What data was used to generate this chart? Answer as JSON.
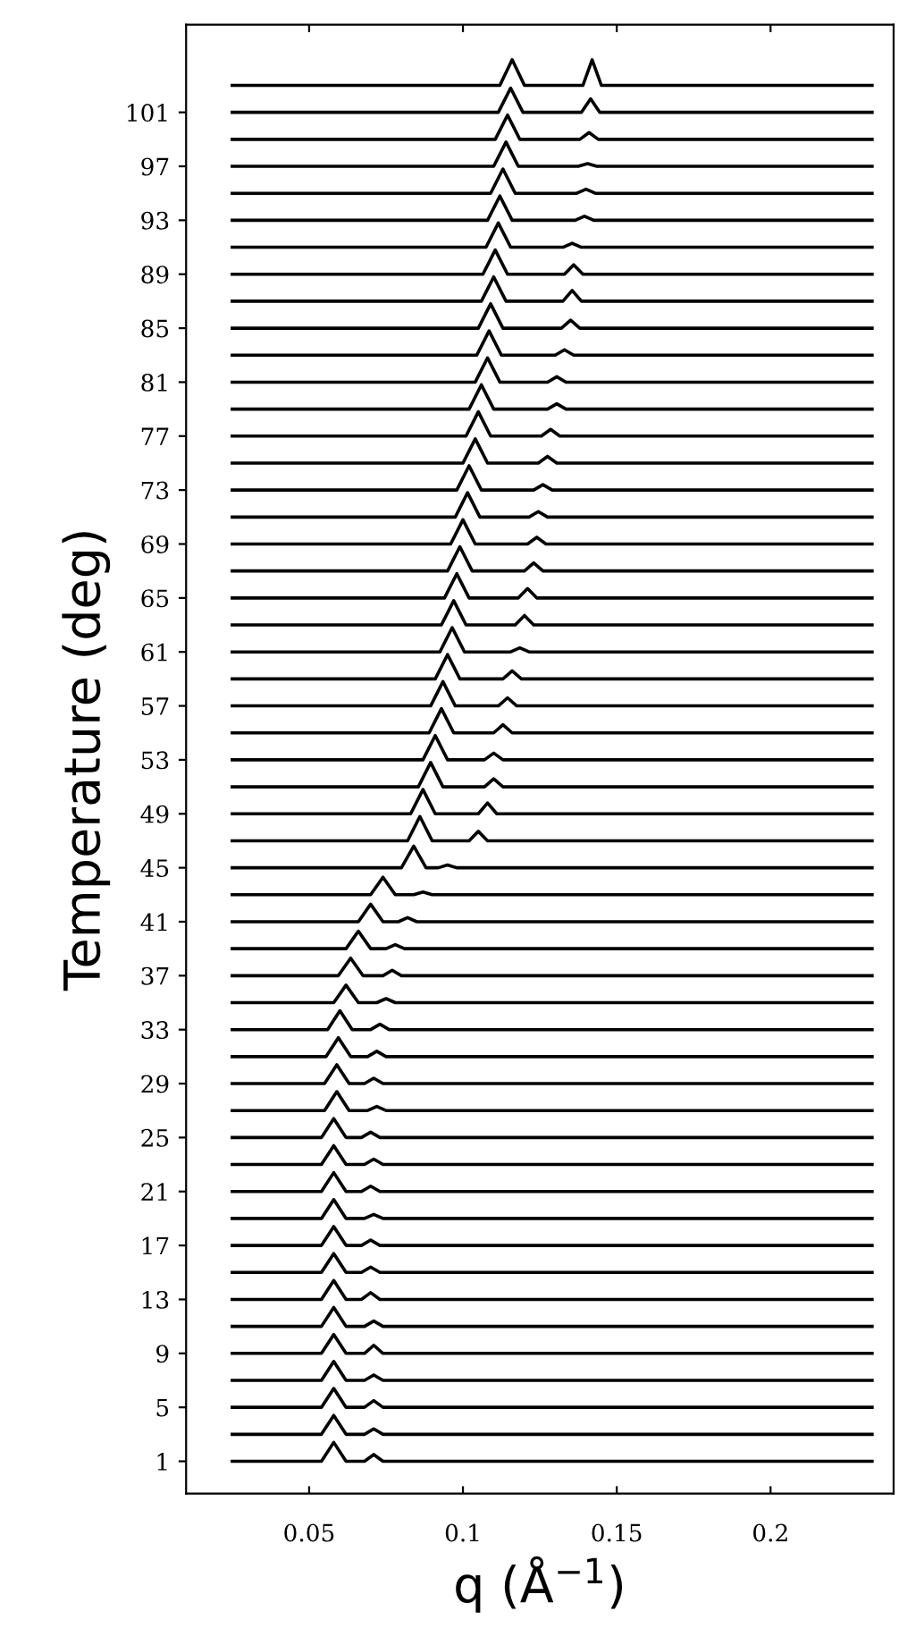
{
  "chart_data": {
    "type": "line",
    "xlabel": "q (Å$^{−1}$)",
    "ylabel": "Temperature (deg)",
    "xlim": [
      0.01,
      0.24
    ],
    "xticks": [
      0.05,
      0.1,
      0.15,
      0.2
    ],
    "ylim": [
      -1.4,
      107.5
    ],
    "yticks": [
      1,
      5,
      9,
      13,
      17,
      21,
      25,
      29,
      33,
      37,
      41,
      45,
      49,
      53,
      57,
      61,
      65,
      69,
      73,
      77,
      81,
      85,
      89,
      93,
      97,
      101
    ],
    "grid": false,
    "marker": "none",
    "line_style": "solid",
    "series": [
      {
        "color": "#000000",
        "x": [
          0.025,
          0.054,
          0.058,
          0.062,
          0.068,
          0.071,
          0.074,
          0.233
        ],
        "values": [
          1,
          1,
          2.4,
          1,
          1,
          1.5,
          1,
          1
        ]
      },
      {
        "color": "#000000",
        "x": [
          0.025,
          0.054,
          0.058,
          0.062,
          0.068,
          0.071,
          0.074,
          0.233
        ],
        "values": [
          3,
          3,
          4.4,
          3,
          3,
          3.4,
          3,
          3
        ]
      },
      {
        "color": "#000000",
        "x": [
          0.025,
          0.054,
          0.058,
          0.062,
          0.068,
          0.071,
          0.074,
          0.233
        ],
        "values": [
          5,
          5,
          6.4,
          5,
          5,
          5.5,
          5,
          5
        ]
      },
      {
        "color": "#000000",
        "x": [
          0.025,
          0.054,
          0.058,
          0.062,
          0.068,
          0.071,
          0.074,
          0.233
        ],
        "values": [
          7,
          7,
          8.4,
          7,
          7,
          7.4,
          7,
          7
        ]
      },
      {
        "color": "#000000",
        "x": [
          0.025,
          0.054,
          0.058,
          0.062,
          0.068,
          0.071,
          0.074,
          0.233
        ],
        "values": [
          9,
          9,
          10.4,
          9,
          9,
          9.6,
          9,
          9
        ]
      },
      {
        "color": "#000000",
        "x": [
          0.025,
          0.054,
          0.058,
          0.062,
          0.068,
          0.071,
          0.074,
          0.233
        ],
        "values": [
          11,
          11,
          12.4,
          11,
          11,
          11.4,
          11,
          11
        ]
      },
      {
        "color": "#000000",
        "x": [
          0.025,
          0.054,
          0.058,
          0.062,
          0.067,
          0.07,
          0.073,
          0.233
        ],
        "values": [
          13,
          13,
          14.4,
          13,
          13,
          13.5,
          13,
          13
        ]
      },
      {
        "color": "#000000",
        "x": [
          0.025,
          0.054,
          0.058,
          0.062,
          0.067,
          0.07,
          0.073,
          0.233
        ],
        "values": [
          15,
          15,
          16.4,
          15,
          15,
          15.4,
          15,
          15
        ]
      },
      {
        "color": "#000000",
        "x": [
          0.025,
          0.054,
          0.058,
          0.062,
          0.067,
          0.07,
          0.073,
          0.233
        ],
        "values": [
          17,
          17,
          18.4,
          17,
          17,
          17.4,
          17,
          17
        ]
      },
      {
        "color": "#000000",
        "x": [
          0.025,
          0.054,
          0.058,
          0.062,
          0.068,
          0.071,
          0.074,
          0.233
        ],
        "values": [
          19,
          19,
          20.4,
          19,
          19,
          19.3,
          19,
          19
        ]
      },
      {
        "color": "#000000",
        "x": [
          0.025,
          0.054,
          0.058,
          0.062,
          0.067,
          0.07,
          0.073,
          0.233
        ],
        "values": [
          21,
          21,
          22.4,
          21,
          21,
          21.4,
          21,
          21
        ]
      },
      {
        "color": "#000000",
        "x": [
          0.025,
          0.054,
          0.058,
          0.062,
          0.068,
          0.071,
          0.074,
          0.233
        ],
        "values": [
          23,
          23,
          24.4,
          23,
          23,
          23.4,
          23,
          23
        ]
      },
      {
        "color": "#000000",
        "x": [
          0.025,
          0.054,
          0.058,
          0.062,
          0.067,
          0.07,
          0.073,
          0.233
        ],
        "values": [
          25,
          25,
          26.4,
          25,
          25,
          25.4,
          25,
          25
        ]
      },
      {
        "color": "#000000",
        "x": [
          0.025,
          0.055,
          0.059,
          0.063,
          0.069,
          0.072,
          0.075,
          0.233
        ],
        "values": [
          27,
          27,
          28.4,
          27,
          27,
          27.3,
          27,
          27
        ]
      },
      {
        "color": "#000000",
        "x": [
          0.025,
          0.055,
          0.059,
          0.063,
          0.068,
          0.071,
          0.074,
          0.233
        ],
        "values": [
          29,
          29,
          30.4,
          29,
          29,
          29.4,
          29,
          29
        ]
      },
      {
        "color": "#000000",
        "x": [
          0.025,
          0.0555,
          0.0595,
          0.0635,
          0.069,
          0.072,
          0.075,
          0.233
        ],
        "values": [
          31,
          31,
          32.4,
          31,
          31,
          31.4,
          31,
          31
        ]
      },
      {
        "color": "#000000",
        "x": [
          0.025,
          0.056,
          0.06,
          0.064,
          0.07,
          0.073,
          0.076,
          0.233
        ],
        "values": [
          33,
          33,
          34.4,
          33,
          33,
          33.4,
          33,
          33
        ]
      },
      {
        "color": "#000000",
        "x": [
          0.025,
          0.058,
          0.062,
          0.066,
          0.072,
          0.075,
          0.078,
          0.233
        ],
        "values": [
          35,
          35,
          36.3,
          35,
          35,
          35.3,
          35,
          35
        ]
      },
      {
        "color": "#000000",
        "x": [
          0.025,
          0.0595,
          0.0635,
          0.0675,
          0.074,
          0.077,
          0.08,
          0.233
        ],
        "values": [
          37,
          37,
          38.3,
          37,
          37,
          37.4,
          37,
          37
        ]
      },
      {
        "color": "#000000",
        "x": [
          0.025,
          0.062,
          0.066,
          0.07,
          0.075,
          0.078,
          0.081,
          0.233
        ],
        "values": [
          39,
          39,
          40.3,
          39,
          39,
          39.3,
          39,
          39
        ]
      },
      {
        "color": "#000000",
        "x": [
          0.025,
          0.066,
          0.07,
          0.074,
          0.079,
          0.082,
          0.085,
          0.233
        ],
        "values": [
          41,
          41,
          42.3,
          41,
          41,
          41.3,
          41,
          41
        ]
      },
      {
        "color": "#000000",
        "x": [
          0.025,
          0.07,
          0.074,
          0.078,
          0.084,
          0.087,
          0.09,
          0.233
        ],
        "values": [
          43,
          43,
          44.3,
          43,
          43,
          43.2,
          43,
          43
        ]
      },
      {
        "color": "#000000",
        "x": [
          0.025,
          0.08,
          0.084,
          0.088,
          0.092,
          0.095,
          0.098,
          0.233
        ],
        "values": [
          45,
          45,
          46.6,
          45,
          45,
          45.2,
          45,
          45
        ]
      },
      {
        "color": "#000000",
        "x": [
          0.025,
          0.082,
          0.086,
          0.09,
          0.102,
          0.105,
          0.108,
          0.233
        ],
        "values": [
          47,
          47,
          48.8,
          47,
          47,
          47.7,
          47,
          47
        ]
      },
      {
        "color": "#000000",
        "x": [
          0.025,
          0.083,
          0.087,
          0.091,
          0.105,
          0.108,
          0.111,
          0.233
        ],
        "values": [
          49,
          49,
          50.8,
          49,
          49,
          49.8,
          49,
          49
        ]
      },
      {
        "color": "#000000",
        "x": [
          0.025,
          0.0855,
          0.0895,
          0.0935,
          0.107,
          0.11,
          0.113,
          0.233
        ],
        "values": [
          51,
          51,
          52.8,
          51,
          51,
          51.6,
          51,
          51
        ]
      },
      {
        "color": "#000000",
        "x": [
          0.025,
          0.087,
          0.091,
          0.095,
          0.107,
          0.11,
          0.113,
          0.233
        ],
        "values": [
          53,
          53,
          54.8,
          53,
          53,
          53.5,
          53,
          53
        ]
      },
      {
        "color": "#000000",
        "x": [
          0.025,
          0.089,
          0.093,
          0.097,
          0.11,
          0.113,
          0.116,
          0.233
        ],
        "values": [
          55,
          55,
          56.8,
          55,
          55,
          55.6,
          55,
          55
        ]
      },
      {
        "color": "#000000",
        "x": [
          0.025,
          0.0895,
          0.0935,
          0.0975,
          0.1115,
          0.1145,
          0.1175,
          0.233
        ],
        "values": [
          57,
          57,
          58.8,
          57,
          57,
          57.6,
          57,
          57
        ]
      },
      {
        "color": "#000000",
        "x": [
          0.025,
          0.091,
          0.095,
          0.099,
          0.113,
          0.116,
          0.119,
          0.233
        ],
        "values": [
          59,
          59,
          60.8,
          59,
          59,
          59.6,
          59,
          59
        ]
      },
      {
        "color": "#000000",
        "x": [
          0.025,
          0.0925,
          0.0965,
          0.1005,
          0.1155,
          0.1185,
          0.1215,
          0.233
        ],
        "values": [
          61,
          61,
          62.8,
          61,
          61,
          61.3,
          61,
          61
        ]
      },
      {
        "color": "#000000",
        "x": [
          0.025,
          0.093,
          0.097,
          0.101,
          0.117,
          0.12,
          0.123,
          0.233
        ],
        "values": [
          63,
          63,
          64.8,
          63,
          63,
          63.7,
          63,
          63
        ]
      },
      {
        "color": "#000000",
        "x": [
          0.025,
          0.094,
          0.098,
          0.102,
          0.118,
          0.121,
          0.124,
          0.233
        ],
        "values": [
          65,
          65,
          66.8,
          65,
          65,
          65.7,
          65,
          65
        ]
      },
      {
        "color": "#000000",
        "x": [
          0.025,
          0.095,
          0.099,
          0.103,
          0.12,
          0.123,
          0.126,
          0.233
        ],
        "values": [
          67,
          67,
          68.8,
          67,
          67,
          67.6,
          67,
          67
        ]
      },
      {
        "color": "#000000",
        "x": [
          0.025,
          0.096,
          0.1,
          0.104,
          0.121,
          0.124,
          0.127,
          0.233
        ],
        "values": [
          69,
          69,
          70.8,
          69,
          69,
          69.5,
          69,
          69
        ]
      },
      {
        "color": "#000000",
        "x": [
          0.025,
          0.0975,
          0.1015,
          0.1055,
          0.1215,
          0.1245,
          0.1275,
          0.233
        ],
        "values": [
          71,
          71,
          72.8,
          71,
          71,
          71.4,
          71,
          71
        ]
      },
      {
        "color": "#000000",
        "x": [
          0.025,
          0.098,
          0.102,
          0.106,
          0.123,
          0.126,
          0.129,
          0.233
        ],
        "values": [
          73,
          73,
          74.8,
          73,
          73,
          73.4,
          73,
          73
        ]
      },
      {
        "color": "#000000",
        "x": [
          0.025,
          0.1,
          0.104,
          0.108,
          0.1245,
          0.1275,
          0.1305,
          0.233
        ],
        "values": [
          75,
          75,
          76.8,
          75,
          75,
          75.5,
          75,
          75
        ]
      },
      {
        "color": "#000000",
        "x": [
          0.025,
          0.101,
          0.105,
          0.109,
          0.1255,
          0.1285,
          0.1315,
          0.233
        ],
        "values": [
          77,
          77,
          78.8,
          77,
          77,
          77.5,
          77,
          77
        ]
      },
      {
        "color": "#000000",
        "x": [
          0.025,
          0.102,
          0.106,
          0.11,
          0.1275,
          0.1305,
          0.1335,
          0.233
        ],
        "values": [
          79,
          79,
          80.8,
          79,
          79,
          79.4,
          79,
          79
        ]
      },
      {
        "color": "#000000",
        "x": [
          0.025,
          0.104,
          0.108,
          0.112,
          0.1275,
          0.1305,
          0.1335,
          0.233
        ],
        "values": [
          81,
          81,
          82.8,
          81,
          81,
          81.4,
          81,
          81
        ]
      },
      {
        "color": "#000000",
        "x": [
          0.025,
          0.1045,
          0.1085,
          0.1125,
          0.13,
          0.133,
          0.136,
          0.233
        ],
        "values": [
          83,
          83,
          84.8,
          83,
          83,
          83.4,
          83,
          83
        ]
      },
      {
        "color": "#000000",
        "x": [
          0.025,
          0.105,
          0.109,
          0.113,
          0.132,
          0.135,
          0.138,
          0.233
        ],
        "values": [
          85,
          85,
          86.8,
          85,
          85,
          85.6,
          85,
          85
        ]
      },
      {
        "color": "#000000",
        "x": [
          0.025,
          0.106,
          0.11,
          0.114,
          0.1325,
          0.1355,
          0.1385,
          0.233
        ],
        "values": [
          87,
          87,
          88.8,
          87,
          87,
          87.8,
          87,
          87
        ]
      },
      {
        "color": "#000000",
        "x": [
          0.025,
          0.1065,
          0.1105,
          0.1145,
          0.133,
          0.136,
          0.139,
          0.233
        ],
        "values": [
          89,
          89,
          90.8,
          89,
          89,
          89.7,
          89,
          89
        ]
      },
      {
        "color": "#000000",
        "x": [
          0.025,
          0.1075,
          0.1115,
          0.1155,
          0.1325,
          0.1355,
          0.1385,
          0.233
        ],
        "values": [
          91,
          91,
          92.8,
          91,
          91,
          91.3,
          91,
          91
        ]
      },
      {
        "color": "#000000",
        "x": [
          0.025,
          0.108,
          0.112,
          0.116,
          0.1365,
          0.1395,
          0.1425,
          0.233
        ],
        "values": [
          93,
          93,
          94.8,
          93,
          93,
          93.3,
          93,
          93
        ]
      },
      {
        "color": "#000000",
        "x": [
          0.025,
          0.109,
          0.113,
          0.117,
          0.137,
          0.14,
          0.143,
          0.233
        ],
        "values": [
          95,
          95,
          96.8,
          95,
          95,
          95.3,
          95,
          95
        ]
      },
      {
        "color": "#000000",
        "x": [
          0.025,
          0.11,
          0.114,
          0.118,
          0.1375,
          0.1405,
          0.1435,
          0.233
        ],
        "values": [
          97,
          97,
          98.8,
          97,
          97,
          97.2,
          97,
          97
        ]
      },
      {
        "color": "#000000",
        "x": [
          0.025,
          0.1105,
          0.1145,
          0.1185,
          0.138,
          0.141,
          0.144,
          0.233
        ],
        "values": [
          99,
          99,
          100.8,
          99,
          99,
          99.5,
          99,
          99
        ]
      },
      {
        "color": "#000000",
        "x": [
          0.025,
          0.1115,
          0.1155,
          0.1195,
          0.1385,
          0.1415,
          0.1445,
          0.233
        ],
        "values": [
          101,
          101,
          102.8,
          101,
          101,
          102,
          101,
          101
        ]
      },
      {
        "color": "#000000",
        "x": [
          0.025,
          0.112,
          0.116,
          0.12,
          0.139,
          0.142,
          0.145,
          0.233
        ],
        "values": [
          103,
          103,
          104.9,
          103,
          103,
          104.9,
          103,
          103
        ]
      }
    ]
  }
}
